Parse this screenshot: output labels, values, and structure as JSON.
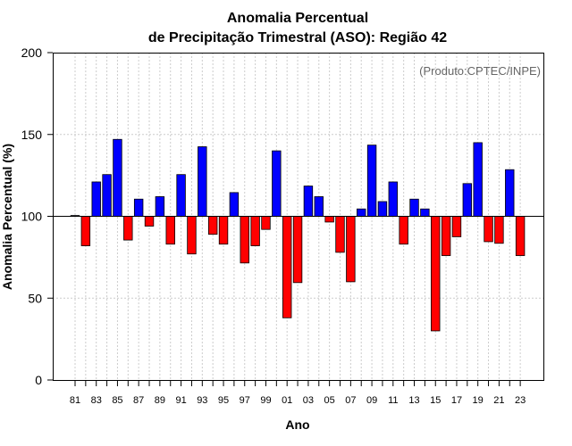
{
  "chart_data": {
    "type": "bar",
    "title_line1": "Anomalia Percentual",
    "title_line2": "de Precipitação Trimestral (ASO): Região 42",
    "xlabel": "Ano",
    "ylabel": "Anomalia Percentual (%)",
    "source": "(Produto:CPTEC/INPE)",
    "baseline": 100,
    "ylim": [
      0,
      200
    ],
    "yticks": [
      0,
      50,
      100,
      150,
      200
    ],
    "grid": true,
    "colors": {
      "above": "#0000ff",
      "below": "#ff0000",
      "edge": "#000000",
      "grid": "#cccccc",
      "baseline": "#000000"
    },
    "categories": [
      "81",
      "82",
      "83",
      "84",
      "85",
      "86",
      "87",
      "88",
      "89",
      "90",
      "91",
      "92",
      "93",
      "94",
      "95",
      "96",
      "97",
      "98",
      "99",
      "00",
      "01",
      "02",
      "03",
      "04",
      "05",
      "06",
      "07",
      "08",
      "09",
      "10",
      "11",
      "12",
      "13",
      "14",
      "15",
      "16",
      "17",
      "18",
      "19",
      "20",
      "21",
      "22",
      "23"
    ],
    "xtick_labels": [
      "81",
      "83",
      "85",
      "87",
      "89",
      "91",
      "93",
      "95",
      "97",
      "99",
      "01",
      "03",
      "05",
      "07",
      "09",
      "11",
      "13",
      "15",
      "17",
      "19",
      "21",
      "23"
    ],
    "values": [
      100.5,
      82,
      121,
      125.5,
      147,
      85.5,
      110.5,
      94,
      112,
      83,
      125.5,
      77,
      142.5,
      89,
      83,
      114.5,
      71.5,
      82,
      92,
      140,
      38,
      59.5,
      118.5,
      112,
      96.5,
      78,
      60,
      104.5,
      143.5,
      109,
      121,
      83,
      110.5,
      104.5,
      30,
      76,
      87.5,
      120,
      145,
      84.5,
      83.5,
      128.5,
      76
    ]
  }
}
